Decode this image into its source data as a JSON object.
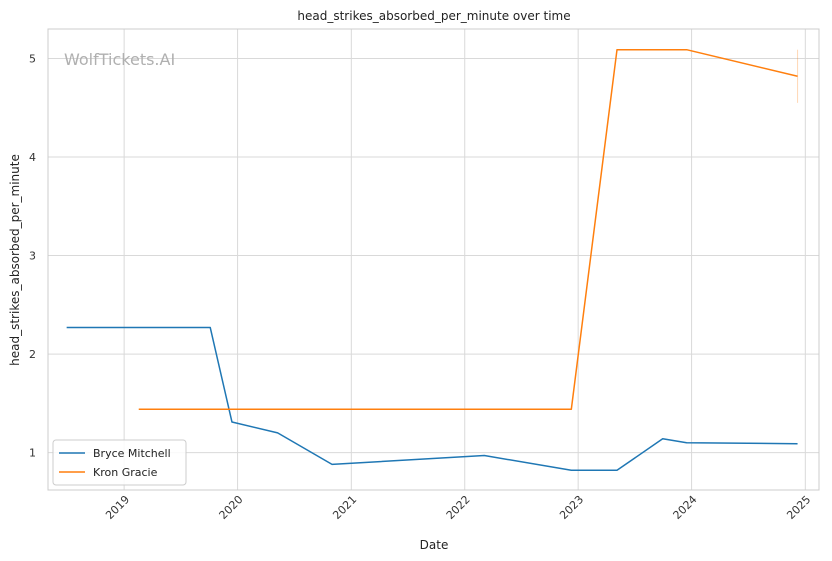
{
  "chart_data": {
    "type": "line",
    "title": "head_strikes_absorbed_per_minute over time",
    "xlabel": "Date",
    "ylabel": "head_strikes_absorbed_per_minute",
    "watermark": "WolfTickets.AI",
    "x_ticks": [
      "2019",
      "2020",
      "2021",
      "2022",
      "2023",
      "2024",
      "2025"
    ],
    "y_ticks": [
      "1",
      "2",
      "3",
      "4",
      "5"
    ],
    "xlim": [
      "2018-05-01",
      "2025-02-14"
    ],
    "ylim": [
      0.62,
      5.3
    ],
    "grid": true,
    "legend_position": "lower-left",
    "series": [
      {
        "name": "Bryce Mitchell",
        "color": "#1f77b4",
        "points": [
          [
            "2018-06-30",
            2.27
          ],
          [
            "2019-10-05",
            2.27
          ],
          [
            "2019-12-14",
            1.31
          ],
          [
            "2020-05-09",
            1.2
          ],
          [
            "2020-10-31",
            0.88
          ],
          [
            "2022-03-05",
            0.97
          ],
          [
            "2022-12-10",
            0.82
          ],
          [
            "2023-05-06",
            0.82
          ],
          [
            "2023-09-30",
            1.14
          ],
          [
            "2023-12-16",
            1.1
          ],
          [
            "2024-12-07",
            1.09
          ]
        ]
      },
      {
        "name": "Kron Gracie",
        "color": "#ff7f0e",
        "points": [
          [
            "2019-02-17",
            1.44
          ],
          [
            "2022-12-10",
            1.44
          ],
          [
            "2023-05-06",
            5.09
          ],
          [
            "2023-12-16",
            5.09
          ],
          [
            "2024-12-07",
            4.82
          ]
        ],
        "error_bar": {
          "x": "2024-12-07",
          "low": 4.55,
          "high": 5.09
        }
      }
    ]
  }
}
